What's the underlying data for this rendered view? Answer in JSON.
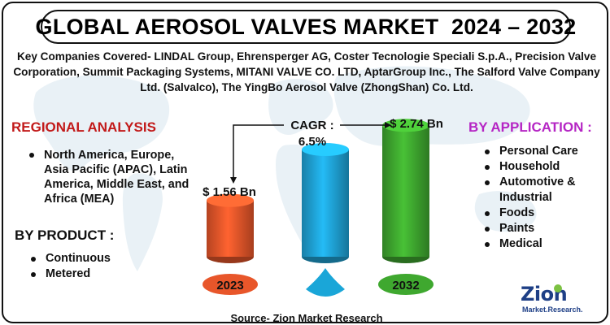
{
  "title": "GLOBAL AEROSOL VALVES MARKET  2024 – 2032",
  "companies_text": "Key Companies Covered- LINDAL Group, Ehrensperger AG, Coster Tecnologie Speciali S.p.A., Precision Valve Corporation, Summit Packaging Systems, MITANI VALVE CO. LTD, AptarGroup Inc., The Salford Valve Company Ltd. (Salvalco), The YingBo Aerosol Valve (ZhongShan) Co. Ltd.",
  "regional": {
    "title": "REGIONAL ANALYSIS",
    "items": [
      "North America, Europe, Asia Pacific (APAC), Latin America, Middle East, and Africa (MEA)"
    ]
  },
  "product": {
    "title": "BY PRODUCT  :",
    "items": [
      "Continuous",
      "Metered"
    ]
  },
  "application": {
    "title": "BY APPLICATION :",
    "items": [
      "Personal Care",
      "Household",
      "Automotive & Industrial",
      "Foods",
      "Paints",
      "Medical"
    ]
  },
  "chart_data": {
    "type": "bar",
    "categories": [
      "2023",
      "",
      "2032"
    ],
    "values": [
      1.56,
      null,
      2.74
    ],
    "value_labels": [
      "$ 1.56 Bn",
      "",
      "$ 2.74 Bn"
    ],
    "annotation": "CAGR : 6.5%",
    "annotation_lines": [
      "CAGR :",
      "6.5%"
    ],
    "unit": "Bn",
    "colors": [
      "#e8562a",
      "#1fa3d6",
      "#3fa82f"
    ],
    "badge_colors": [
      "#e8562a",
      "#1aa6d8",
      "#3fa82f"
    ],
    "relative_heights": [
      0.42,
      0.8,
      0.98
    ]
  },
  "source": "Source- Zion Market Research",
  "logo": {
    "word": "Zion",
    "tag": "Market.Research."
  }
}
